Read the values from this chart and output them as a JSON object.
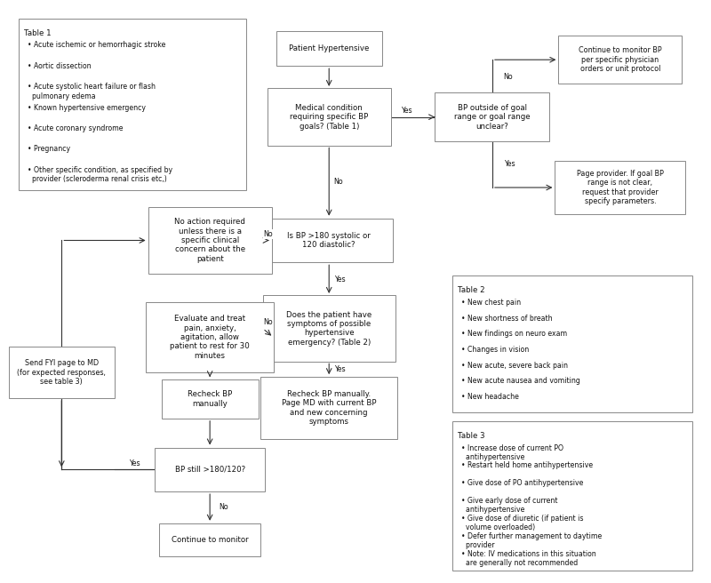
{
  "figsize": [
    8.0,
    6.56
  ],
  "dpi": 100,
  "bg_color": "#ffffff",
  "box_color": "#ffffff",
  "box_edge": "#888888",
  "arrow_color": "#333333",
  "text_color": "#111111",
  "font_size": 6.2,
  "table1_title": "Table 1",
  "table1_items": [
    "Acute ischemic or hemorrhagic stroke",
    "Aortic dissection",
    "Acute systolic heart failure or flash\n  pulmonary edema",
    "Known hypertensive emergency",
    "Acute coronary syndrome",
    "Pregnancy",
    "Other specific condition, as specified by\n  provider (scleroderma renal crisis etc,)"
  ],
  "table2_title": "Table 2",
  "table2_items": [
    "New chest pain",
    "New shortness of breath",
    "New findings on neuro exam",
    "Changes in vision",
    "New acute, severe back pain",
    "New acute nausea and vomiting",
    "New headache"
  ],
  "table3_title": "Table 3",
  "table3_items": [
    "Increase dose of current PO\n  antihypertensive",
    "Restart held home antihypertensive",
    "Give dose of PO antihypertensive",
    "Give early dose of current\n  antihypertensive",
    "Give dose of diuretic (if patient is\n  volume overloaded)",
    "Defer further management to daytime\n  provider",
    "Note: IV medications in this situation\n  are generally not recommended"
  ]
}
